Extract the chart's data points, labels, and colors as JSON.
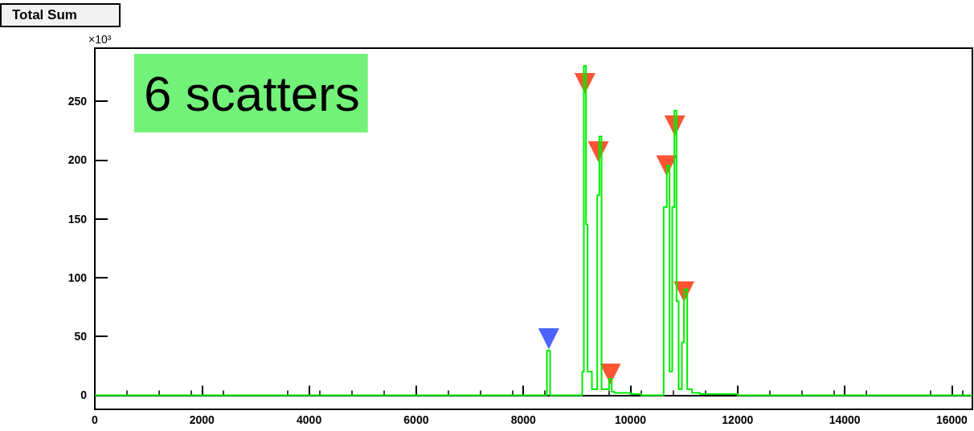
{
  "chart_data": {
    "type": "step",
    "title": "Total Sum",
    "ylabel": "×10³",
    "annotations": [
      "6 scatters"
    ],
    "xlim": [
      0,
      16384
    ],
    "xticks": [
      0,
      2000,
      4000,
      6000,
      8000,
      10000,
      12000,
      14000,
      16000
    ],
    "ylim": [
      -12,
      295
    ],
    "yticks": [
      0,
      50,
      100,
      150,
      200,
      250
    ],
    "series": [
      {
        "color": "#00ee00",
        "marker": "none",
        "x": [
          0,
          8440,
          8500,
          9100,
          9130,
          9170,
          9200,
          9280,
          9380,
          9420,
          9460,
          9550,
          9600,
          9650,
          9700,
          10000,
          10200,
          10620,
          10680,
          10730,
          10780,
          10820,
          10860,
          10900,
          10960,
          11000,
          11060,
          11150,
          11300,
          12000,
          16384
        ],
        "values": [
          0,
          38,
          0,
          20,
          280,
          145,
          20,
          5,
          170,
          220,
          5,
          5,
          14,
          3,
          2,
          1,
          0,
          160,
          195,
          20,
          160,
          242,
          80,
          5,
          45,
          90,
          5,
          2,
          1,
          0,
          0
        ]
      },
      {
        "type": "scatter",
        "marker": "triangle",
        "colors": [
          "#1f3cff",
          "#ff2a00",
          "#ff2a00",
          "#ff2a00",
          "#ff2a00",
          "#ff2a00",
          "#ff2a00"
        ],
        "x": [
          8475,
          9150,
          9400,
          9625,
          10675,
          10830,
          11000
        ],
        "values": [
          48,
          265,
          207,
          18,
          195,
          229,
          88
        ]
      }
    ]
  }
}
